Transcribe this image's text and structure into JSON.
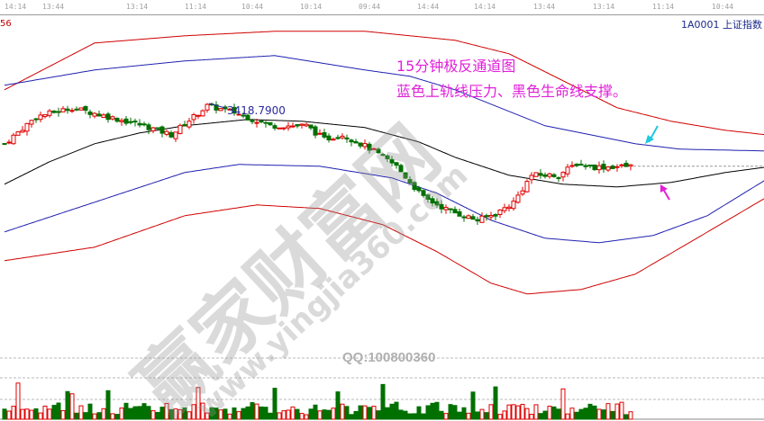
{
  "header": {
    "time_ticks": [
      "14:14",
      "13:44",
      "13:14",
      "11:14",
      "10:44",
      "10:14",
      "09:44",
      "14:44",
      "14:14",
      "13:44",
      "13:14",
      "11:14",
      "10:44"
    ],
    "left_value": "56",
    "symbol": "1A0001 上证指数"
  },
  "annotation": {
    "line1": "15分钟极反通道图",
    "line2": "蓝色上轨线压力、黑色生命线支撑。"
  },
  "price_label": "3418.7900",
  "qq": "QQ:100800360",
  "watermark": {
    "cn": "赢家财富网",
    "url": "www.yingjia360.com"
  },
  "colors": {
    "up": "#e00000",
    "down": "#007000",
    "band_outer": "#d00000",
    "band_inner": "#2020b0",
    "mid": "#000000",
    "arrow_upper": "#20c8e0",
    "arrow_lower": "#e020d8"
  },
  "chart_data": {
    "type": "candlestick",
    "title": "",
    "x_unit": "15-minute bar index",
    "price_path": [
      [
        0,
        3384
      ],
      [
        7,
        3414
      ],
      [
        15,
        3424
      ],
      [
        23,
        3414
      ],
      [
        31,
        3404
      ],
      [
        37,
        3394
      ],
      [
        45,
        3426
      ],
      [
        51,
        3419
      ],
      [
        59,
        3404
      ],
      [
        67,
        3404
      ],
      [
        71,
        3389
      ],
      [
        75,
        3394
      ],
      [
        81,
        3379
      ],
      [
        87,
        3359
      ],
      [
        93,
        3324
      ],
      [
        99,
        3309
      ],
      [
        105,
        3299
      ],
      [
        109,
        3306
      ],
      [
        113,
        3319
      ],
      [
        117,
        3349
      ],
      [
        123,
        3349
      ],
      [
        127,
        3362
      ],
      [
        131,
        3358
      ],
      [
        139,
        3359
      ]
    ],
    "bands": {
      "outer_upper": [
        [
          0,
          3444
        ],
        [
          20,
          3496
        ],
        [
          40,
          3504
        ],
        [
          60,
          3509
        ],
        [
          80,
          3509
        ],
        [
          100,
          3499
        ],
        [
          112,
          3484
        ],
        [
          124,
          3454
        ],
        [
          136,
          3424
        ],
        [
          148,
          3409
        ],
        [
          160,
          3399
        ],
        [
          169,
          3394
        ]
      ],
      "inner_upper": [
        [
          0,
          3449
        ],
        [
          20,
          3466
        ],
        [
          40,
          3476
        ],
        [
          60,
          3482
        ],
        [
          80,
          3466
        ],
        [
          90,
          3459
        ],
        [
          100,
          3444
        ],
        [
          110,
          3424
        ],
        [
          120,
          3404
        ],
        [
          130,
          3394
        ],
        [
          140,
          3384
        ],
        [
          150,
          3378
        ],
        [
          169,
          3376
        ]
      ],
      "middle": [
        [
          0,
          3339
        ],
        [
          10,
          3364
        ],
        [
          20,
          3384
        ],
        [
          30,
          3396
        ],
        [
          40,
          3404
        ],
        [
          54,
          3411
        ],
        [
          66,
          3409
        ],
        [
          80,
          3402
        ],
        [
          92,
          3386
        ],
        [
          100,
          3369
        ],
        [
          112,
          3349
        ],
        [
          124,
          3339
        ],
        [
          136,
          3336
        ],
        [
          148,
          3341
        ],
        [
          160,
          3352
        ],
        [
          169,
          3358
        ]
      ],
      "inner_lower": [
        [
          0,
          3286
        ],
        [
          20,
          3319
        ],
        [
          40,
          3352
        ],
        [
          52,
          3361
        ],
        [
          70,
          3359
        ],
        [
          86,
          3346
        ],
        [
          96,
          3329
        ],
        [
          108,
          3299
        ],
        [
          120,
          3279
        ],
        [
          132,
          3274
        ],
        [
          144,
          3282
        ],
        [
          156,
          3304
        ],
        [
          169,
          3344
        ]
      ],
      "outer_lower": [
        [
          0,
          3254
        ],
        [
          20,
          3269
        ],
        [
          40,
          3304
        ],
        [
          56,
          3316
        ],
        [
          70,
          3312
        ],
        [
          84,
          3294
        ],
        [
          96,
          3264
        ],
        [
          108,
          3229
        ],
        [
          116,
          3217
        ],
        [
          128,
          3222
        ],
        [
          140,
          3239
        ],
        [
          152,
          3274
        ],
        [
          169,
          3324
        ]
      ]
    },
    "last_price_dashed": true,
    "volume": {
      "visible": true,
      "grid": "dashed"
    }
  }
}
